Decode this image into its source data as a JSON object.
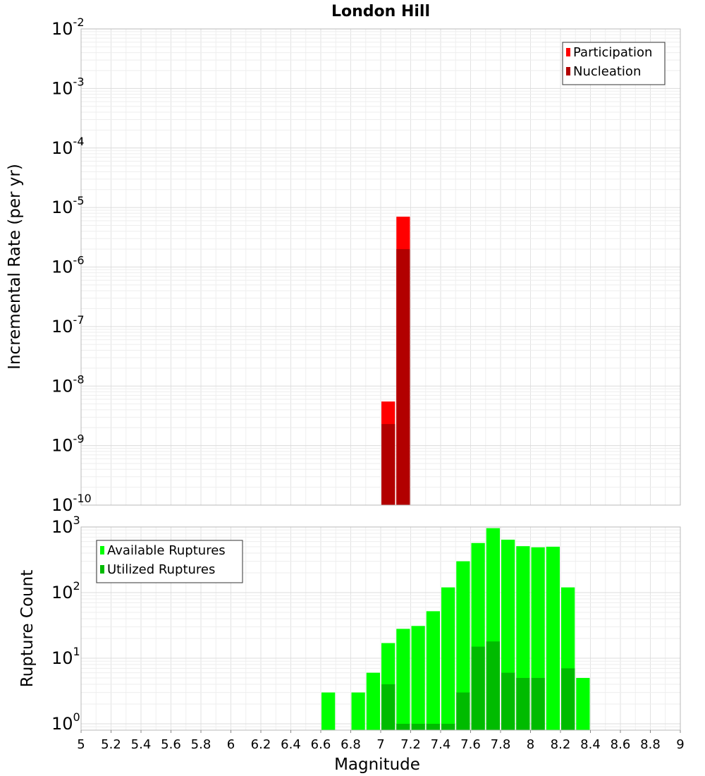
{
  "chart_data": [
    {
      "type": "bar",
      "title": "London Hill",
      "ylabel": "Incremental Rate (per yr)",
      "xlabel": "",
      "yscale": "log",
      "ylim": [
        1e-10,
        0.01
      ],
      "xlim": [
        5,
        9
      ],
      "bar_width": 0.1,
      "grid": true,
      "legend_position": "top-right",
      "yticks": [
        {
          "base": "10",
          "exp": "-2",
          "value": 0.01
        },
        {
          "base": "10",
          "exp": "-3",
          "value": 0.001
        },
        {
          "base": "10",
          "exp": "-4",
          "value": 0.0001
        },
        {
          "base": "10",
          "exp": "-5",
          "value": 1e-05
        },
        {
          "base": "10",
          "exp": "-6",
          "value": 1e-06
        },
        {
          "base": "10",
          "exp": "-7",
          "value": 1e-07
        },
        {
          "base": "10",
          "exp": "-8",
          "value": 1e-08
        },
        {
          "base": "10",
          "exp": "-9",
          "value": 1e-09
        },
        {
          "base": "10",
          "exp": "-10",
          "value": 1e-10
        }
      ],
      "series": [
        {
          "name": "Participation",
          "color": "#ff0000",
          "x": [
            7.05,
            7.15
          ],
          "values": [
            5.5e-09,
            7e-06
          ]
        },
        {
          "name": "Nucleation",
          "color": "#b20000",
          "x": [
            7.05,
            7.15
          ],
          "values": [
            2.3e-09,
            2e-06
          ]
        }
      ]
    },
    {
      "type": "bar",
      "title": "",
      "ylabel": "Rupture Count",
      "xlabel": "Magnitude",
      "yscale": "log",
      "ylim": [
        0.8,
        1000
      ],
      "xlim": [
        5,
        9
      ],
      "bar_width": 0.1,
      "grid": true,
      "legend_position": "top-left",
      "yticks": [
        {
          "base": "10",
          "exp": "3",
          "value": 1000
        },
        {
          "base": "10",
          "exp": "2",
          "value": 100
        },
        {
          "base": "10",
          "exp": "1",
          "value": 10
        },
        {
          "base": "10",
          "exp": "0",
          "value": 1
        }
      ],
      "xticks": [
        "5",
        "5.2",
        "5.4",
        "5.6",
        "5.8",
        "6",
        "6.2",
        "6.4",
        "6.6",
        "6.8",
        "7",
        "7.2",
        "7.4",
        "7.6",
        "7.8",
        "8",
        "8.2",
        "8.4",
        "8.6",
        "8.8",
        "9"
      ],
      "series": [
        {
          "name": "Available Ruptures",
          "color": "#00ff00",
          "x": [
            6.65,
            6.85,
            6.95,
            7.05,
            7.15,
            7.25,
            7.35,
            7.45,
            7.55,
            7.65,
            7.75,
            7.85,
            7.95,
            8.05,
            8.15,
            8.25,
            8.35
          ],
          "values": [
            3,
            3,
            6,
            17,
            28,
            31,
            52,
            120,
            300,
            570,
            960,
            640,
            510,
            490,
            500,
            120,
            5
          ]
        },
        {
          "name": "Utilized Ruptures",
          "color": "#00bb00",
          "x": [
            7.05,
            7.15,
            7.25,
            7.35,
            7.45,
            7.55,
            7.65,
            7.75,
            7.85,
            7.95,
            8.05,
            8.25
          ],
          "values": [
            4,
            1,
            1,
            1,
            1,
            3,
            15,
            18,
            6,
            5,
            5,
            7
          ]
        }
      ]
    }
  ]
}
